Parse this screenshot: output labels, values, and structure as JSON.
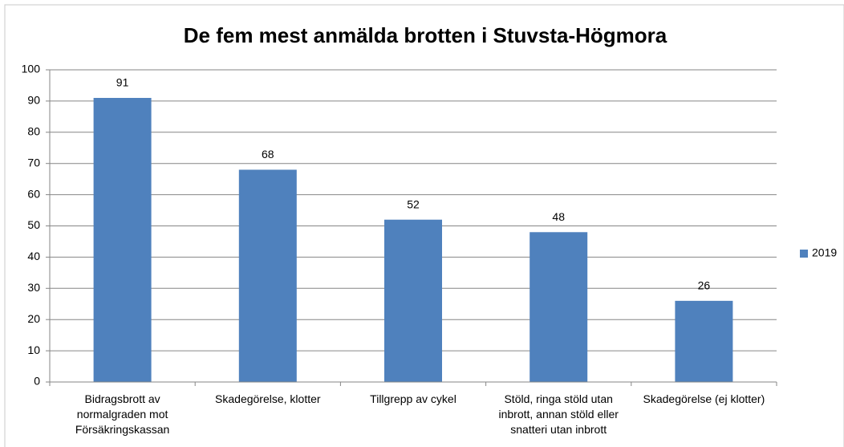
{
  "chart_data": {
    "type": "bar",
    "title": "De fem mest anmälda brotten i Stuvsta-Högmora",
    "categories": [
      "Bidragsbrott av normalgraden mot Försäkringskassan",
      "Skadegörelse, klotter",
      "Tillgrepp av cykel",
      "Stöld, ringa stöld utan inbrott, annan stöld eller snatteri utan inbrott",
      "Skadegörelse (ej klotter)"
    ],
    "series": [
      {
        "name": "2019",
        "color": "#4f81bd",
        "values": [
          91,
          68,
          52,
          48,
          26
        ]
      }
    ],
    "ylim": [
      0,
      100
    ],
    "yticks": [
      0,
      10,
      20,
      30,
      40,
      50,
      60,
      70,
      80,
      90,
      100
    ],
    "grid": true,
    "legend": "right"
  }
}
